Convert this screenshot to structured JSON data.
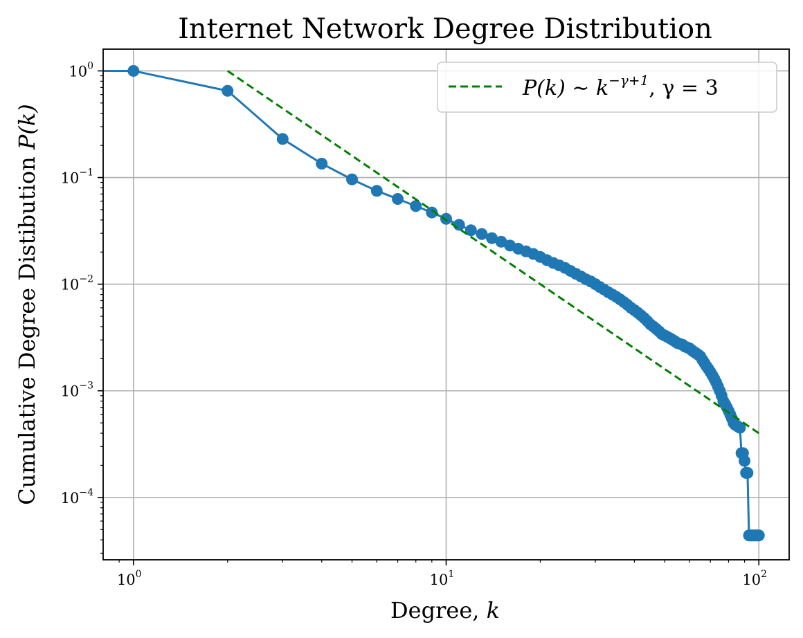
{
  "chart_data": {
    "type": "line",
    "title": "Internet Network Degree Distribution",
    "xlabel": "Degree, k",
    "ylabel": "Cumulative Degree Distibution P(k)",
    "xscale": "log",
    "yscale": "log",
    "xlim": [
      0.8,
      125
    ],
    "ylim": [
      2.6e-05,
      1.6
    ],
    "grid": true,
    "legend_position": "top-right",
    "x_ticks": [
      {
        "base": "10",
        "exp": "0",
        "value": 1
      },
      {
        "base": "10",
        "exp": "1",
        "value": 10
      },
      {
        "base": "10",
        "exp": "2",
        "value": 100
      }
    ],
    "y_ticks": [
      {
        "base": "10",
        "exp": "0",
        "value": 1
      },
      {
        "base": "10",
        "exp": "−1",
        "value": 0.1
      },
      {
        "base": "10",
        "exp": "−2",
        "value": 0.01
      },
      {
        "base": "10",
        "exp": "−3",
        "value": 0.001
      },
      {
        "base": "10",
        "exp": "−4",
        "value": 0.0001
      }
    ],
    "series": [
      {
        "kind": "empirical",
        "color": "#1f77b4",
        "x": [
          0.5,
          1,
          2,
          3,
          4,
          5,
          6,
          7,
          8,
          9,
          10,
          11,
          12,
          13,
          14,
          15,
          16,
          17,
          18,
          19,
          20,
          21,
          22,
          23,
          24,
          25,
          26,
          27,
          28,
          29,
          30,
          31,
          32,
          33,
          34,
          35,
          36,
          37,
          38,
          39,
          40,
          41,
          42,
          43,
          44,
          45,
          46,
          47,
          48,
          49,
          50,
          51,
          52,
          53,
          54,
          55,
          56,
          57,
          58,
          59,
          60,
          61,
          62,
          63,
          64,
          65,
          66,
          67,
          68,
          69,
          70,
          71,
          72,
          73,
          74,
          75,
          76,
          77,
          78,
          79,
          80,
          81,
          82,
          83,
          84,
          85,
          86,
          87,
          88,
          89,
          90,
          91,
          92,
          93,
          94,
          95,
          96,
          97,
          98,
          99,
          100
        ],
        "y": [
          1.0,
          1.0,
          0.65,
          0.23,
          0.135,
          0.096,
          0.075,
          0.063,
          0.054,
          0.047,
          0.041,
          0.036,
          0.032,
          0.0295,
          0.027,
          0.025,
          0.023,
          0.0215,
          0.0203,
          0.0192,
          0.018,
          0.0168,
          0.0158,
          0.015,
          0.0142,
          0.0133,
          0.0125,
          0.0118,
          0.0111,
          0.0106,
          0.01,
          0.0094,
          0.0089,
          0.0084,
          0.008,
          0.0076,
          0.0072,
          0.0068,
          0.0064,
          0.006,
          0.0057,
          0.0054,
          0.0051,
          0.0048,
          0.0045,
          0.0042,
          0.004,
          0.0038,
          0.0036,
          0.0034,
          0.0033,
          0.0032,
          0.0031,
          0.003,
          0.0029,
          0.0028,
          0.00275,
          0.0027,
          0.0026,
          0.00255,
          0.0025,
          0.0024,
          0.00232,
          0.00225,
          0.00218,
          0.0021,
          0.00195,
          0.00182,
          0.0017,
          0.0016,
          0.0015,
          0.0014,
          0.0013,
          0.0012,
          0.0011,
          0.001,
          0.0009,
          0.0008,
          0.00075,
          0.0007,
          0.00065,
          0.0006,
          0.00055,
          0.0005,
          0.00048,
          0.00047,
          0.00046,
          0.00045,
          0.00026,
          0.00026,
          0.00022,
          0.00017,
          0.00017,
          4.4e-05,
          4.4e-05,
          4.4e-05,
          4.4e-05,
          4.4e-05,
          4.4e-05,
          4.4e-05,
          4.4e-05
        ]
      },
      {
        "kind": "fit",
        "name": "P(k) ∼ k^(−γ+1), γ = 3",
        "color": "#008000",
        "x": [
          2,
          100
        ],
        "y": [
          1.0,
          0.0004
        ]
      }
    ],
    "legend": {
      "lhs": "P(k) ∼ k",
      "exp": "−γ+1",
      "rhs": ",  γ = 3"
    }
  }
}
